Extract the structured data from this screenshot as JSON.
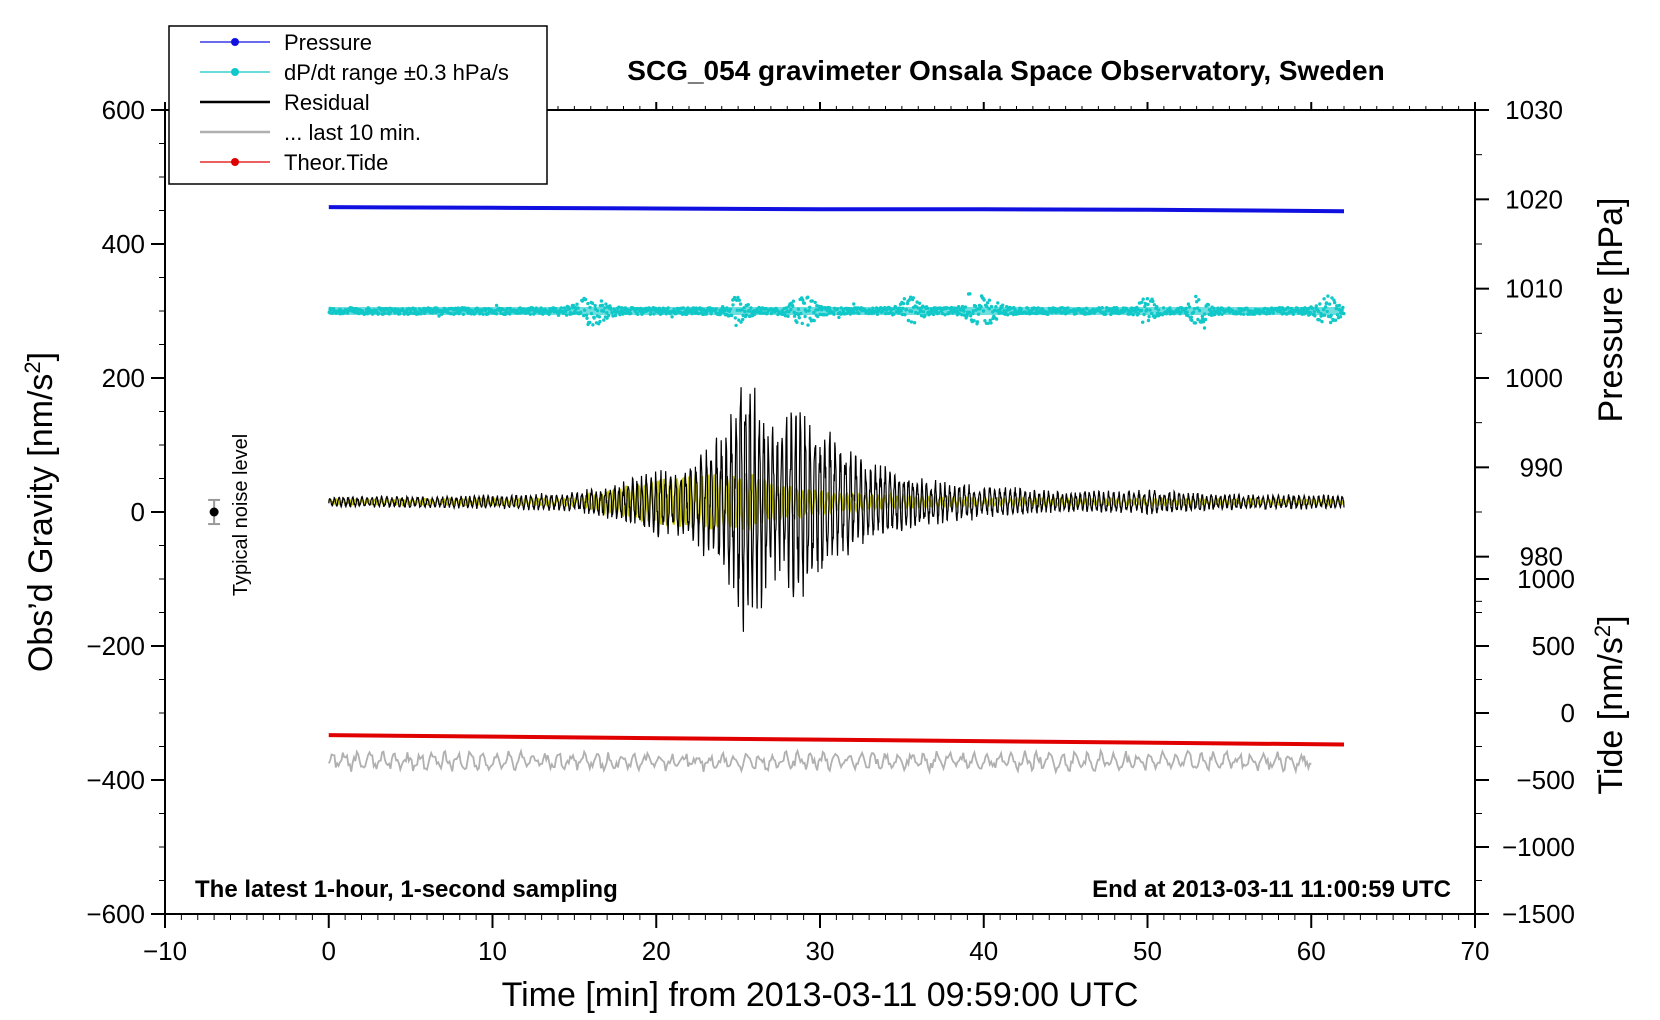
{
  "chart_data": {
    "type": "line",
    "title": "SCG_054 gravimeter Onsala Space Observatory, Sweden",
    "footer_left": "The latest 1-hour, 1-second sampling",
    "footer_right": "End at 2013-03-11 11:00:59 UTC",
    "xlabel": "Time [min] from 2013-03-11 09:59:00 UTC",
    "ylabel": "Obs’d Gravity [nm/s²]",
    "ylabel_base": "Obs’d Gravity [nm/s",
    "ylabel_sup": "2",
    "ylabel_end": "]",
    "y2_label": "Pressure [hPa]",
    "y3_label_base": "Tide [nm/s",
    "y3_label_sup": "2",
    "y3_label_end": "]",
    "noise_label": "Typical noise level",
    "xlim": [
      -10,
      70
    ],
    "ylim": [
      -600,
      600
    ],
    "x_ticks": [
      -10,
      0,
      10,
      20,
      30,
      40,
      50,
      60,
      70
    ],
    "x_tick_labels": [
      "−10",
      "0",
      "10",
      "20",
      "30",
      "40",
      "50",
      "60",
      "70"
    ],
    "y_ticks": [
      -600,
      -400,
      -200,
      0,
      200,
      400,
      600
    ],
    "y_tick_labels": [
      "−600",
      "−400",
      "−200",
      "0",
      "200",
      "400",
      "600"
    ],
    "pressure_axis": {
      "values": [
        980,
        990,
        1000,
        1010,
        1020,
        1030
      ],
      "labels": [
        "980",
        "990",
        "1000",
        "1010",
        "1020",
        "1030"
      ],
      "range": [
        940,
        1030
      ]
    },
    "tide_axis": {
      "values": [
        -1500,
        -1000,
        -500,
        0,
        500,
        1000
      ],
      "labels": [
        "−1500",
        "−1000",
        "−500",
        "0",
        "500",
        "1000"
      ],
      "range": [
        -1500,
        4500
      ]
    },
    "legend": [
      {
        "label": "Pressure",
        "color": "#1010e0",
        "style": "line-dot"
      },
      {
        "label": "dP/dt range ±0.3 hPa/s",
        "color": "#10c8c8",
        "style": "line-dot"
      },
      {
        "label": "Residual",
        "color": "#000000",
        "style": "line"
      },
      {
        "label": "... last 10 min.",
        "color": "#b0b0b0",
        "style": "line"
      },
      {
        "label": "Theor.Tide",
        "color": "#e00000",
        "style": "line-dot"
      }
    ],
    "series": [
      {
        "name": "Pressure",
        "color": "#1010e0",
        "x": [
          0,
          10,
          20,
          30,
          40,
          50,
          62
        ],
        "y": [
          455,
          454,
          453,
          452,
          452,
          451,
          449
        ]
      },
      {
        "name": "dP/dt range ±0.3 hPa/s",
        "color": "#10c8c8",
        "baseline": 300,
        "x_range": [
          0,
          62
        ]
      },
      {
        "name": "Residual",
        "color": "#000000",
        "baseline": 15,
        "envelope_x": [
          0,
          10,
          15,
          18,
          20,
          22,
          24,
          25.5,
          27,
          29,
          31,
          33,
          36,
          40,
          45,
          50,
          55,
          62
        ],
        "envelope_amp": [
          8,
          10,
          15,
          30,
          50,
          60,
          100,
          230,
          110,
          150,
          90,
          60,
          35,
          25,
          15,
          18,
          12,
          10
        ]
      },
      {
        "name": "Yellow wave",
        "color": "#c8c810",
        "baseline": 15,
        "envelope_x": [
          0,
          15,
          18,
          20,
          22,
          24,
          25.5,
          27,
          29,
          31,
          35,
          40,
          62
        ],
        "envelope_amp": [
          3,
          5,
          20,
          30,
          35,
          38,
          40,
          25,
          18,
          12,
          8,
          5,
          3
        ]
      },
      {
        "name": "Theor.Tide",
        "color": "#e00000",
        "x": [
          0,
          62
        ],
        "y": [
          -333,
          -347
        ]
      },
      {
        "name": "... last 10 min.",
        "color": "#b0b0b0",
        "baseline": -372,
        "x_range": [
          0,
          60
        ]
      }
    ],
    "noise_bar": {
      "x": -7,
      "y": 0,
      "err": 18
    }
  }
}
